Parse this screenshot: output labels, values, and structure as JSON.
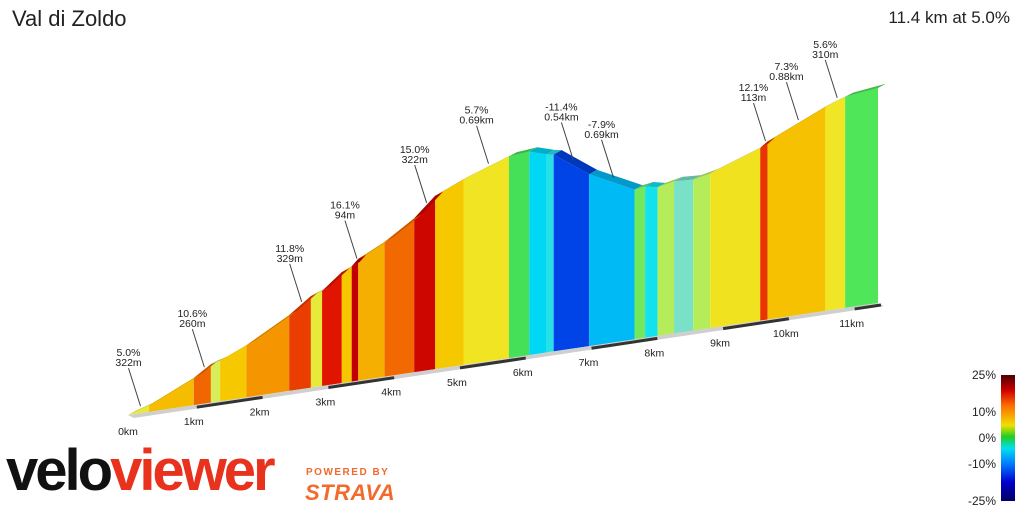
{
  "header": {
    "title": "Val di Zoldo",
    "summary": "11.4 km at 5.0%"
  },
  "chart_data": {
    "type": "area",
    "title": "Val di Zoldo",
    "xlabel": "km",
    "ylabel": "",
    "xlim": [
      0,
      11.4
    ],
    "x_ticks": [
      "0km",
      "1km",
      "2km",
      "3km",
      "4km",
      "5km",
      "6km",
      "7km",
      "8km",
      "9km",
      "10km",
      "11km"
    ],
    "segments": [
      {
        "start": 0.0,
        "end": 0.32,
        "grade": 5.0
      },
      {
        "start": 0.32,
        "end": 1.0,
        "grade": 7.5
      },
      {
        "start": 1.0,
        "end": 1.26,
        "grade": 10.6
      },
      {
        "start": 1.26,
        "end": 1.4,
        "grade": 4.0
      },
      {
        "start": 1.4,
        "end": 1.8,
        "grade": 7.0
      },
      {
        "start": 1.8,
        "end": 2.45,
        "grade": 9.0
      },
      {
        "start": 2.45,
        "end": 2.78,
        "grade": 11.8
      },
      {
        "start": 2.78,
        "end": 2.95,
        "grade": 5.0
      },
      {
        "start": 2.95,
        "end": 3.25,
        "grade": 13.0
      },
      {
        "start": 3.25,
        "end": 3.4,
        "grade": 7.0
      },
      {
        "start": 3.4,
        "end": 3.5,
        "grade": 16.1
      },
      {
        "start": 3.5,
        "end": 3.9,
        "grade": 8.0
      },
      {
        "start": 3.9,
        "end": 4.35,
        "grade": 10.5
      },
      {
        "start": 4.35,
        "end": 4.67,
        "grade": 15.0
      },
      {
        "start": 4.67,
        "end": 5.1,
        "grade": 7.0
      },
      {
        "start": 5.1,
        "end": 5.79,
        "grade": 5.7
      },
      {
        "start": 5.79,
        "end": 6.1,
        "grade": 1.5
      },
      {
        "start": 6.1,
        "end": 6.36,
        "grade": -5.0
      },
      {
        "start": 6.36,
        "end": 6.47,
        "grade": -3.0
      },
      {
        "start": 6.47,
        "end": 7.01,
        "grade": -11.4
      },
      {
        "start": 7.01,
        "end": 7.7,
        "grade": -7.9
      },
      {
        "start": 7.7,
        "end": 7.86,
        "grade": 2.5
      },
      {
        "start": 7.86,
        "end": 8.05,
        "grade": -3.5
      },
      {
        "start": 8.05,
        "end": 8.3,
        "grade": 3.5
      },
      {
        "start": 8.3,
        "end": 8.59,
        "grade": -1.0
      },
      {
        "start": 8.59,
        "end": 8.85,
        "grade": 3.5
      },
      {
        "start": 8.85,
        "end": 9.61,
        "grade": 5.8
      },
      {
        "start": 9.61,
        "end": 9.72,
        "grade": 12.1
      },
      {
        "start": 9.72,
        "end": 10.6,
        "grade": 7.3
      },
      {
        "start": 10.6,
        "end": 10.9,
        "grade": 5.6
      },
      {
        "start": 10.9,
        "end": 11.4,
        "grade": 2.0
      }
    ],
    "annotations": [
      {
        "km": 0.16,
        "grade": "5.0%",
        "length": "322m"
      },
      {
        "km": 1.13,
        "grade": "10.6%",
        "length": "260m"
      },
      {
        "km": 2.61,
        "grade": "11.8%",
        "length": "329m"
      },
      {
        "km": 3.45,
        "grade": "16.1%",
        "length": "94m"
      },
      {
        "km": 4.51,
        "grade": "15.0%",
        "length": "322m"
      },
      {
        "km": 5.45,
        "grade": "5.7%",
        "length": "0.69km"
      },
      {
        "km": 6.74,
        "grade": "-11.4%",
        "length": "0.54km"
      },
      {
        "km": 7.35,
        "grade": "-7.9%",
        "length": "0.69km"
      },
      {
        "km": 9.66,
        "grade": "12.1%",
        "length": "113m"
      },
      {
        "km": 10.16,
        "grade": "7.3%",
        "length": "0.88km"
      },
      {
        "km": 10.75,
        "grade": "5.6%",
        "length": "310m"
      }
    ],
    "legend": {
      "labels": [
        "25%",
        "10%",
        "0%",
        "-10%",
        "-25%"
      ]
    }
  },
  "branding": {
    "velo": "velo",
    "viewer": "viewer",
    "powered_by": "POWERED BY",
    "strava": "STRAVA"
  }
}
